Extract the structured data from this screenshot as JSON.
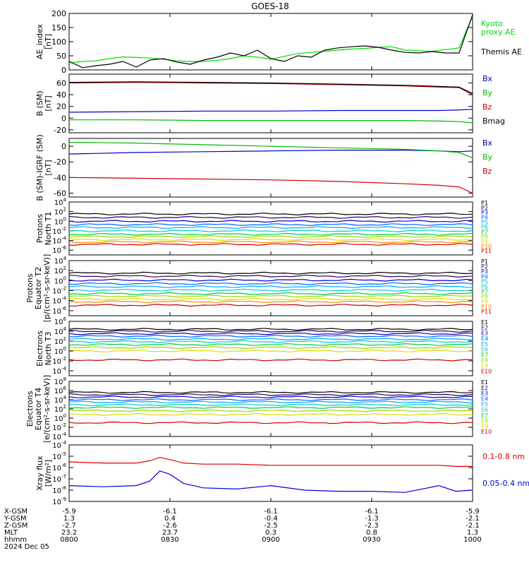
{
  "title": "GOES-18",
  "date_label": "2024 Dec 05",
  "footer": {
    "row_labels": [
      "X-GSM",
      "Y-GSM",
      "Z-GSM",
      "MLT",
      "hhmm"
    ],
    "columns": [
      [
        "-5.9",
        "1.3",
        "-2.7",
        "23.2",
        "0800"
      ],
      [
        "-6.1",
        "0.4",
        "-2.6",
        "23.7",
        "0830"
      ],
      [
        "-6.1",
        "-0.4",
        "-2.5",
        "0.3",
        "0900"
      ],
      [
        "-6.1",
        "-1.3",
        "-2.3",
        "0.8",
        "0930"
      ],
      [
        "-5.9",
        "-2.1",
        "-2.1",
        "1.3",
        "1000"
      ]
    ]
  },
  "chart_data": [
    {
      "type": "line",
      "panel": "ae",
      "ylabel": [
        "AE_index",
        "[nT]"
      ],
      "ylim": [
        0,
        200
      ],
      "ticks": [
        0,
        50,
        100,
        150,
        200
      ],
      "x": [
        0,
        4,
        8,
        12,
        16,
        20,
        24,
        28,
        32,
        36,
        40,
        44,
        48,
        52,
        56,
        60,
        64,
        68,
        72,
        76,
        80,
        84,
        88,
        92,
        96,
        100,
        104,
        108,
        112,
        116,
        120
      ],
      "series": [
        {
          "name": "Kyoto\nproxy AE",
          "color": "#00dd00",
          "values": [
            25,
            30,
            32,
            40,
            46,
            44,
            42,
            38,
            32,
            30,
            30,
            34,
            40,
            50,
            45,
            38,
            48,
            58,
            62,
            66,
            70,
            74,
            76,
            80,
            82,
            70,
            68,
            66,
            72,
            78,
            190
          ]
        },
        {
          "name": "Themis AE",
          "color": "#000000",
          "values": [
            30,
            8,
            15,
            20,
            30,
            10,
            35,
            40,
            28,
            20,
            35,
            45,
            60,
            50,
            70,
            40,
            30,
            50,
            45,
            70,
            78,
            82,
            85,
            80,
            70,
            62,
            60,
            65,
            60,
            60,
            195
          ]
        }
      ]
    },
    {
      "type": "line",
      "panel": "bsm",
      "ylabel": [
        "B (SM)",
        "[nT]"
      ],
      "ylim": [
        -25,
        75
      ],
      "ticks": [
        -20,
        0,
        20,
        40,
        60
      ],
      "x": [
        0,
        20,
        40,
        60,
        80,
        100,
        110,
        116,
        120
      ],
      "series": [
        {
          "name": "Bx",
          "color": "#0000cc",
          "values": [
            10,
            11,
            12,
            12,
            13,
            13,
            13,
            14,
            15
          ]
        },
        {
          "name": "By",
          "color": "#00bb00",
          "values": [
            -3,
            -3,
            -4,
            -4,
            -4,
            -4,
            -5,
            -6,
            -8
          ]
        },
        {
          "name": "Bz",
          "color": "#cc0000",
          "values": [
            60,
            61,
            60,
            59,
            57,
            55,
            53,
            52,
            40
          ]
        },
        {
          "name": "Bmag",
          "color": "#000000",
          "values": [
            61,
            62,
            61,
            60,
            58,
            56,
            54,
            53,
            42
          ]
        }
      ]
    },
    {
      "type": "line",
      "panel": "bigrf",
      "ylabel": [
        "B (SM)-IGRF (SM)",
        "[nT]"
      ],
      "ylim": [
        -65,
        10
      ],
      "ticks": [
        -60,
        -40,
        -20,
        0
      ],
      "x": [
        0,
        20,
        40,
        60,
        80,
        100,
        110,
        116,
        120
      ],
      "series": [
        {
          "name": "Bx",
          "color": "#0000cc",
          "values": [
            -10,
            -8,
            -7,
            -6,
            -5,
            -5,
            -6,
            -7,
            -6
          ]
        },
        {
          "name": "By",
          "color": "#00bb00",
          "values": [
            5,
            4,
            2,
            0,
            -2,
            -4,
            -6,
            -8,
            -15
          ]
        },
        {
          "name": "Bz",
          "color": "#cc0000",
          "values": [
            -40,
            -41,
            -42,
            -43,
            -45,
            -48,
            -50,
            -52,
            -60
          ]
        }
      ]
    },
    {
      "type": "line",
      "panel": "pn",
      "ylabel": [
        "Protons",
        "North T1"
      ],
      "scale": "log",
      "ylim": [
        -7,
        4
      ],
      "ticks": [
        -6,
        -4,
        -2,
        0,
        2,
        4
      ],
      "series": [
        {
          "name": "P1",
          "color": "#000000",
          "level": 1.5
        },
        {
          "name": "P2",
          "color": "#330055",
          "level": 0.8
        },
        {
          "name": "P3",
          "color": "#0000cc",
          "level": 0.0
        },
        {
          "name": "P4",
          "color": "#0066ff",
          "level": -0.7
        },
        {
          "name": "P5",
          "color": "#00aaff",
          "level": -1.3
        },
        {
          "name": "P6",
          "color": "#00cccc",
          "level": -2.0
        },
        {
          "name": "P7",
          "color": "#00cc44",
          "level": -2.7
        },
        {
          "name": "P8",
          "color": "#99dd00",
          "level": -3.2
        },
        {
          "name": "P9",
          "color": "#dddd00",
          "level": -3.8
        },
        {
          "name": "P10",
          "color": "#ff8800",
          "level": -4.3
        },
        {
          "name": "P11",
          "color": "#cc0000",
          "level": -4.8
        }
      ]
    },
    {
      "type": "line",
      "panel": "pe",
      "ylabel": [
        "Protons",
        "Equator T2",
        "[p/(cm²-s-sr-keV)]"
      ],
      "scale": "log",
      "ylim": [
        -7,
        4
      ],
      "ticks": [
        -6,
        -4,
        -2,
        0,
        2,
        4
      ],
      "series": [
        {
          "name": "P1",
          "color": "#000000",
          "level": 1.5
        },
        {
          "name": "P2",
          "color": "#330055",
          "level": 0.9
        },
        {
          "name": "P3",
          "color": "#0000cc",
          "level": 0.1
        },
        {
          "name": "P4",
          "color": "#0066ff",
          "level": -0.6
        },
        {
          "name": "P5",
          "color": "#00aaff",
          "level": -1.2
        },
        {
          "name": "P6",
          "color": "#00cccc",
          "level": -1.9
        },
        {
          "name": "P7",
          "color": "#00cc44",
          "level": -2.6
        },
        {
          "name": "P8",
          "color": "#99dd00",
          "level": -3.1
        },
        {
          "name": "P9",
          "color": "#dddd00",
          "level": -3.7
        },
        {
          "name": "P10",
          "color": "#ff8800",
          "level": -4.2
        },
        {
          "name": "P11",
          "color": "#cc0000",
          "level": -4.9
        }
      ]
    },
    {
      "type": "line",
      "panel": "en",
      "ylabel": [
        "Electrons",
        "North T3"
      ],
      "scale": "log",
      "ylim": [
        -5,
        6
      ],
      "ticks": [
        -4,
        -2,
        0,
        2,
        4,
        6
      ],
      "series": [
        {
          "name": "E1",
          "color": "#000000",
          "level": 4.4
        },
        {
          "name": "E2",
          "color": "#330055",
          "level": 4.0
        },
        {
          "name": "E3",
          "color": "#0000cc",
          "level": 3.5
        },
        {
          "name": "E4",
          "color": "#0066ff",
          "level": 3.0
        },
        {
          "name": "E5",
          "color": "#00aaff",
          "level": 2.4
        },
        {
          "name": "E6",
          "color": "#00cccc",
          "level": 1.9
        },
        {
          "name": "E7",
          "color": "#00cc44",
          "level": 1.3
        },
        {
          "name": "E8",
          "color": "#99dd00",
          "level": 0.7
        },
        {
          "name": "E9",
          "color": "#dddd00",
          "level": 0.0
        },
        {
          "name": "E10",
          "color": "#cc0000",
          "level": -1.8
        }
      ]
    },
    {
      "type": "line",
      "panel": "ee",
      "ylabel": [
        "Electrons",
        "Equator T4",
        "[e/(cm²-s-sr-keV)]"
      ],
      "scale": "log",
      "ylim": [
        -4,
        8
      ],
      "ticks": [
        -4,
        -2,
        0,
        2,
        4,
        6,
        8
      ],
      "series": [
        {
          "name": "E1",
          "color": "#000000",
          "level": 5.6
        },
        {
          "name": "E2",
          "color": "#330055",
          "level": 5.1
        },
        {
          "name": "E3",
          "color": "#0000cc",
          "level": 4.6
        },
        {
          "name": "E4",
          "color": "#0066ff",
          "level": 4.0
        },
        {
          "name": "E5",
          "color": "#00aaff",
          "level": 3.5
        },
        {
          "name": "E6",
          "color": "#00cccc",
          "level": 2.9
        },
        {
          "name": "E7",
          "color": "#00cc44",
          "level": 2.3
        },
        {
          "name": "E8",
          "color": "#99dd00",
          "level": 1.6
        },
        {
          "name": "E9",
          "color": "#dddd00",
          "level": 0.8
        },
        {
          "name": "E10",
          "color": "#cc0000",
          "level": -1.0
        }
      ]
    },
    {
      "type": "line",
      "panel": "xray",
      "ylabel": [
        "Xray flux",
        "[W/m²]"
      ],
      "scale": "log",
      "ylim": [
        -9,
        -4
      ],
      "ticks": [
        -9,
        -8,
        -7,
        -6,
        -5,
        -4
      ],
      "x": [
        0,
        10,
        20,
        24,
        27,
        30,
        34,
        40,
        50,
        60,
        70,
        80,
        90,
        100,
        110,
        115,
        120
      ],
      "series": [
        {
          "name": "0.1-0.8 nm",
          "color": "#dd0000",
          "values": [
            -5.5,
            -5.6,
            -5.6,
            -5.4,
            -5.1,
            -5.3,
            -5.6,
            -5.7,
            -5.7,
            -5.8,
            -5.8,
            -5.8,
            -5.8,
            -5.8,
            -5.8,
            -5.9,
            -5.9
          ]
        },
        {
          "name": "0.05-0.4 nm",
          "color": "#0000dd",
          "values": [
            -7.6,
            -7.7,
            -7.6,
            -7.2,
            -6.3,
            -6.6,
            -7.4,
            -7.8,
            -7.9,
            -7.6,
            -8.0,
            -8.1,
            -8.1,
            -8.2,
            -7.6,
            -8.1,
            -8.0
          ]
        }
      ]
    }
  ]
}
